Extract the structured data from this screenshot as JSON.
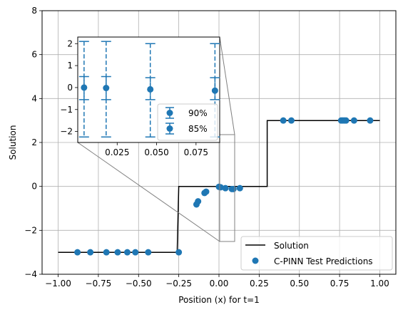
{
  "chart_data": [
    {
      "type": "line",
      "xlabel": "Position (x) for t=1",
      "ylabel": "Solution",
      "xlim": [
        -1.1,
        1.1
      ],
      "ylim": [
        -4,
        8
      ],
      "xticks": [
        -1.0,
        -0.75,
        -0.5,
        -0.25,
        0.0,
        0.25,
        0.5,
        0.75,
        1.0
      ],
      "xtick_labels": [
        "−1.00",
        "−0.75",
        "−0.50",
        "−0.25",
        "0.00",
        "0.25",
        "0.50",
        "0.75",
        "1.00"
      ],
      "yticks": [
        -4,
        -2,
        0,
        2,
        4,
        6,
        8
      ],
      "ytick_labels": [
        "−4",
        "−2",
        "0",
        "2",
        "4",
        "6",
        "8"
      ],
      "grid": true,
      "legend_position": "lower-right",
      "series": [
        {
          "name": "Solution",
          "color": "#000000",
          "x": [
            -1.0,
            -0.26,
            -0.26,
            -0.25,
            -0.25,
            0.3,
            0.3,
            1.0
          ],
          "y": [
            -3,
            -3,
            -3,
            0,
            0,
            0,
            3,
            3
          ]
        },
        {
          "name": "C-PINN Test Predictions",
          "color": "#1f77b4",
          "x": [
            -0.88,
            -0.8,
            -0.7,
            -0.63,
            -0.57,
            -0.52,
            -0.44,
            -0.25,
            -0.14,
            -0.13,
            -0.09,
            -0.08,
            0.0,
            0.01,
            0.04,
            0.08,
            0.09,
            0.13,
            0.4,
            0.45,
            0.76,
            0.77,
            0.78,
            0.79,
            0.84,
            0.94
          ],
          "y": [
            -3,
            -3,
            -3,
            -3,
            -3,
            -3,
            -3,
            -3,
            -0.82,
            -0.68,
            -0.3,
            -0.24,
            -0.02,
            -0.04,
            -0.08,
            -0.12,
            -0.12,
            -0.08,
            3,
            3,
            3,
            3,
            3,
            3,
            3,
            3
          ]
        }
      ]
    },
    {
      "type": "scatter",
      "role": "inset",
      "xlim": [
        0.0,
        0.09
      ],
      "ylim": [
        -2.5,
        2.3
      ],
      "xticks": [
        0.025,
        0.05,
        0.075
      ],
      "xtick_labels": [
        "0.025",
        "0.050",
        "0.075"
      ],
      "yticks": [
        -2,
        -1,
        0,
        1,
        2
      ],
      "ytick_labels": [
        "−2",
        "−1",
        "0",
        "1",
        "2"
      ],
      "grid": false,
      "legend_position": "lower-right",
      "x": [
        0.004,
        0.018,
        0.046,
        0.087
      ],
      "y": [
        0.0,
        -0.02,
        -0.08,
        -0.14
      ],
      "series": [
        {
          "name": "90%",
          "color": "#1f77b4",
          "lower": [
            -2.25,
            -2.25,
            -2.25,
            -2.25
          ],
          "upper": [
            2.1,
            2.1,
            2.0,
            2.0
          ]
        },
        {
          "name": "85%",
          "color": "#1f77b4",
          "lower": [
            -0.55,
            -0.55,
            -0.55,
            -0.55
          ],
          "upper": [
            0.5,
            0.5,
            0.45,
            0.45
          ]
        }
      ]
    }
  ]
}
